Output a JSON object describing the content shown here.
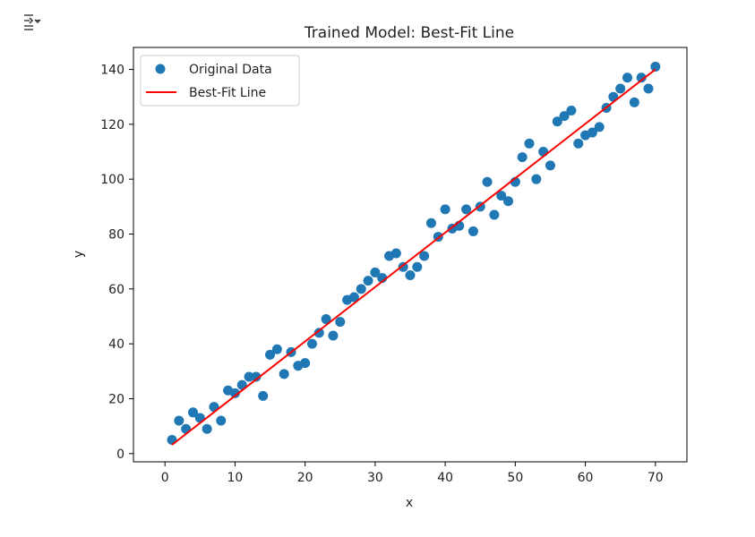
{
  "chart_data": {
    "type": "scatter",
    "title": "Trained Model: Best-Fit Line",
    "xlabel": "x",
    "ylabel": "y",
    "xlim": [
      -4.5,
      74.5
    ],
    "ylim": [
      -3,
      148
    ],
    "x_ticks": [
      0,
      10,
      20,
      30,
      40,
      50,
      60,
      70
    ],
    "y_ticks": [
      0,
      20,
      40,
      60,
      80,
      100,
      120,
      140
    ],
    "grid": false,
    "legend_position": "upper-left",
    "series": [
      {
        "name": "Original Data",
        "kind": "scatter",
        "color": "#1f77b4",
        "x": [
          1,
          2,
          3,
          4,
          5,
          6,
          7,
          8,
          9,
          10,
          11,
          12,
          13,
          14,
          15,
          16,
          17,
          18,
          19,
          20,
          21,
          22,
          23,
          24,
          25,
          26,
          27,
          28,
          29,
          30,
          31,
          32,
          33,
          34,
          35,
          36,
          37,
          38,
          39,
          40,
          41,
          42,
          43,
          44,
          45,
          46,
          47,
          48,
          49,
          50,
          51,
          52,
          53,
          54,
          55,
          56,
          57,
          58,
          59,
          60,
          61,
          62,
          63,
          64,
          65,
          66,
          67,
          68,
          69,
          70
        ],
        "y": [
          5,
          12,
          9,
          15,
          13,
          9,
          17,
          12,
          23,
          22,
          25,
          28,
          28,
          21,
          36,
          38,
          29,
          37,
          32,
          33,
          40,
          44,
          49,
          43,
          48,
          56,
          57,
          60,
          63,
          66,
          64,
          72,
          73,
          68,
          65,
          68,
          72,
          84,
          79,
          89,
          82,
          83,
          89,
          81,
          90,
          99,
          87,
          94,
          92,
          99,
          108,
          113,
          100,
          110,
          105,
          121,
          123,
          125,
          113,
          116,
          117,
          119,
          126,
          130,
          133,
          137,
          128,
          137,
          133,
          141
        ]
      },
      {
        "name": "Best-Fit Line",
        "kind": "line",
        "color": "#ff0000",
        "x": [
          1,
          70
        ],
        "y": [
          3.2,
          140.0
        ]
      }
    ]
  },
  "output_toggle_icon": "output-toggle-icon"
}
